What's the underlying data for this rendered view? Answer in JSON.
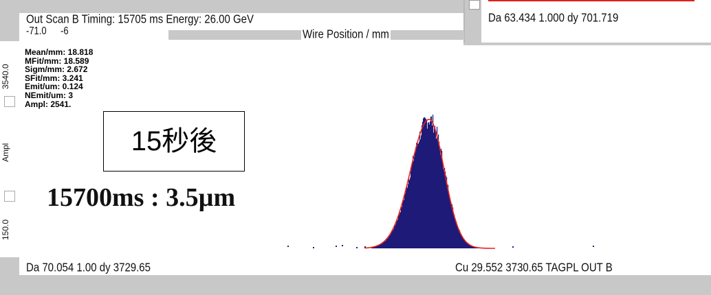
{
  "header": {
    "title": "Out Scan B Timing: 15705 ms Energy: 26.00 GeV",
    "range_left": "-71.0",
    "range_right": "-6",
    "xaxis_label": "Wire Position / mm"
  },
  "top_right": {
    "readout": "Da   63.434   1.000 dy 701.719"
  },
  "y_axis": {
    "label": "Ampl",
    "top_value": "3540.0",
    "bottom_value": "150.0"
  },
  "stats": {
    "mean": "Mean/mm: 18.818",
    "mfit": "MFit/mm: 18.589",
    "sigma": "Sigm/mm: 2.672",
    "sfit": "SFit/mm: 3.241",
    "emit": "Emit/um: 0.124",
    "nemit": "NEmit/um: 3",
    "ampl": "Ampl: 2541."
  },
  "annotation_box": "15秒後",
  "annotation_text": "15700ms : 3.5µm",
  "bottom_bar": {
    "left": "Da   70.054    1.00 dy 3729.65",
    "right": "Cu   29.552 3730.65 TAGPL   OUT  B"
  },
  "colors": {
    "panel_bg": "#ffffff",
    "frame_bg": "#c8c8c8",
    "histogram": "#1d1a78",
    "fit_curve": "#e8241c",
    "red_accent": "#e02020"
  }
}
